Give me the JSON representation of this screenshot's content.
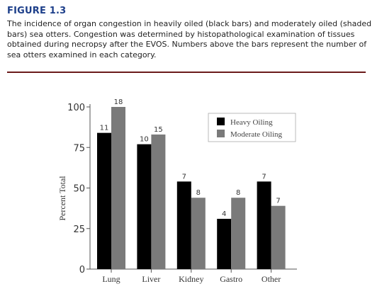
{
  "figure": {
    "title": "FIGURE 1.3",
    "caption": "The incidence of organ congestion in heavily oiled (black bars) and moderately oiled (shaded bars) sea otters. Congestion was determined by histopathological examination of tissues obtained during necropsy after the EVOS. Numbers above the bars represent the number of sea otters examined in each category."
  },
  "chart_data": {
    "type": "bar",
    "title": "",
    "xlabel": "",
    "ylabel": "Percent Total",
    "ylim": [
      0,
      100
    ],
    "yticks": [
      0,
      25,
      50,
      75,
      100
    ],
    "grid": false,
    "legend_position": "top-right",
    "categories": [
      "Lung",
      "Liver",
      "Kidney",
      "Gastro",
      "Other"
    ],
    "series": [
      {
        "name": "Heavy Oiling",
        "color": "#000000",
        "values": [
          84,
          77,
          54,
          31,
          54
        ],
        "labels": [
          "11",
          "10",
          "7",
          "4",
          "7"
        ]
      },
      {
        "name": "Moderate Oiling",
        "color": "#7a7a7a",
        "values": [
          100,
          83,
          44,
          44,
          39
        ],
        "labels": [
          "18",
          "15",
          "8",
          "8",
          "7"
        ]
      }
    ]
  }
}
